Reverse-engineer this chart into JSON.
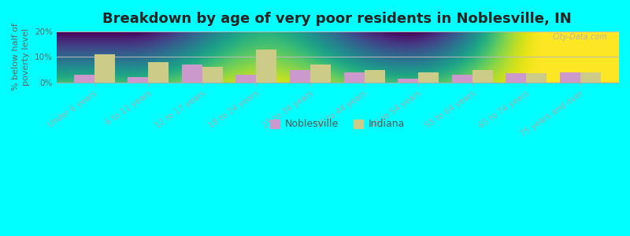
{
  "title": "Breakdown by age of very poor residents in Noblesville, IN",
  "ylabel": "% below half of\npoverty level",
  "categories": [
    "Under 6 years",
    "6 to 11 years",
    "12 to 17 years",
    "18 to 24 years",
    "25 to 34 years",
    "35 to 44 years",
    "45 to 54 years",
    "55 to 64 years",
    "65 to 74 years",
    "75 years and over"
  ],
  "noblesville_values": [
    3.0,
    2.0,
    7.0,
    3.0,
    5.0,
    4.0,
    1.5,
    3.0,
    3.5,
    4.0
  ],
  "indiana_values": [
    11.0,
    8.0,
    6.0,
    13.0,
    7.0,
    5.0,
    4.0,
    5.0,
    3.5,
    4.0
  ],
  "noblesville_color": "#cc99cc",
  "indiana_color": "#cccc88",
  "background_outer": "#00ffff",
  "ylim": [
    0,
    20
  ],
  "yticks": [
    0,
    10,
    20
  ],
  "ytick_labels": [
    "0%",
    "10%",
    "20%"
  ],
  "bar_width": 0.38,
  "title_fontsize": 13,
  "label_fontsize": 8,
  "tick_fontsize": 7.5,
  "watermark": "City-Data.com",
  "legend_labels": [
    "Noblesville",
    "Indiana"
  ]
}
